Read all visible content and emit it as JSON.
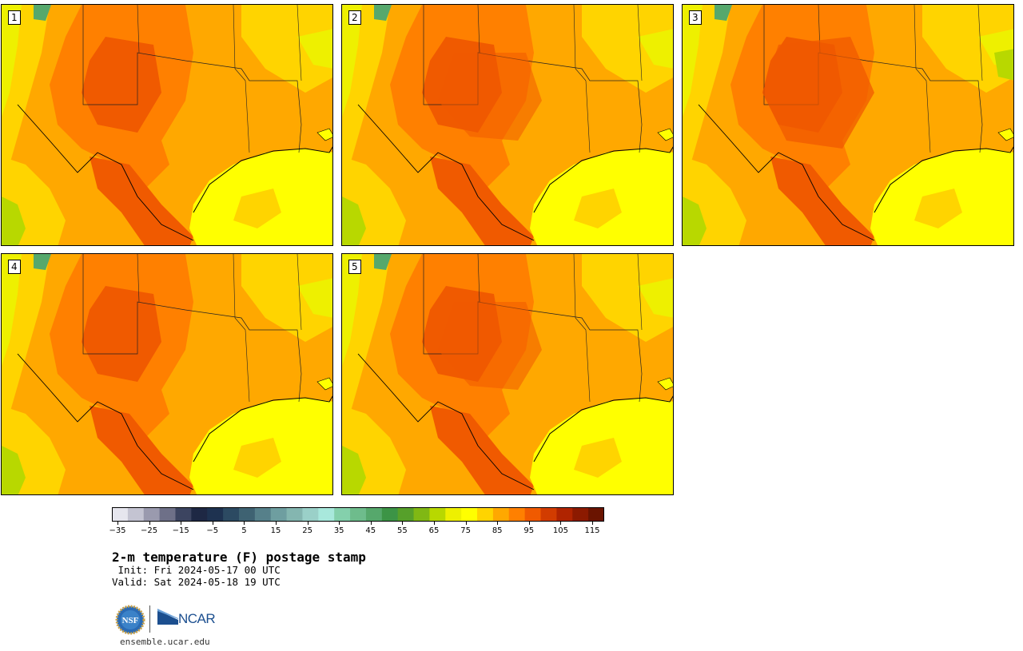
{
  "panels": [
    {
      "id": "1",
      "label": "1"
    },
    {
      "id": "2",
      "label": "2"
    },
    {
      "id": "3",
      "label": "3"
    },
    {
      "id": "4",
      "label": "4"
    },
    {
      "id": "5",
      "label": "5"
    }
  ],
  "colorbar": {
    "ticks": [
      "−35",
      "−25",
      "−15",
      "−5",
      "5",
      "15",
      "25",
      "35",
      "45",
      "55",
      "65",
      "75",
      "85",
      "95",
      "105",
      "115"
    ],
    "colors": [
      "#e6e6ee",
      "#c4c4d2",
      "#9a9aae",
      "#6e7088",
      "#3c4460",
      "#1e2844",
      "#1e3250",
      "#2c4a62",
      "#3e6272",
      "#56808a",
      "#6e9ea0",
      "#84b6b0",
      "#9ad0c8",
      "#a8e8dc",
      "#84d0ac",
      "#6ebc8c",
      "#56a86c",
      "#3c9446",
      "#56a02a",
      "#80b814",
      "#b8d800",
      "#eef000",
      "#ffff00",
      "#ffd400",
      "#ffa800",
      "#ff8000",
      "#f05a00",
      "#d23c00",
      "#b02400",
      "#8c1a00",
      "#6a1400"
    ]
  },
  "title": "2-m temperature (F) postage stamp",
  "init_line": " Init: Fri 2024-05-17 00 UTC",
  "valid_line": "Valid: Sat 2024-05-18 19 UTC",
  "logos": {
    "nsf": "NSF",
    "ncar": "NCAR"
  },
  "site": "ensemble.ucar.edu",
  "map_colors": {
    "gulf": "#ffff00",
    "warm": "#ffa800",
    "hot": "#ff8000",
    "hotter": "#f05a00",
    "cool": "#ffd400",
    "green": "#b8d800",
    "mtn": "#56a86c"
  }
}
